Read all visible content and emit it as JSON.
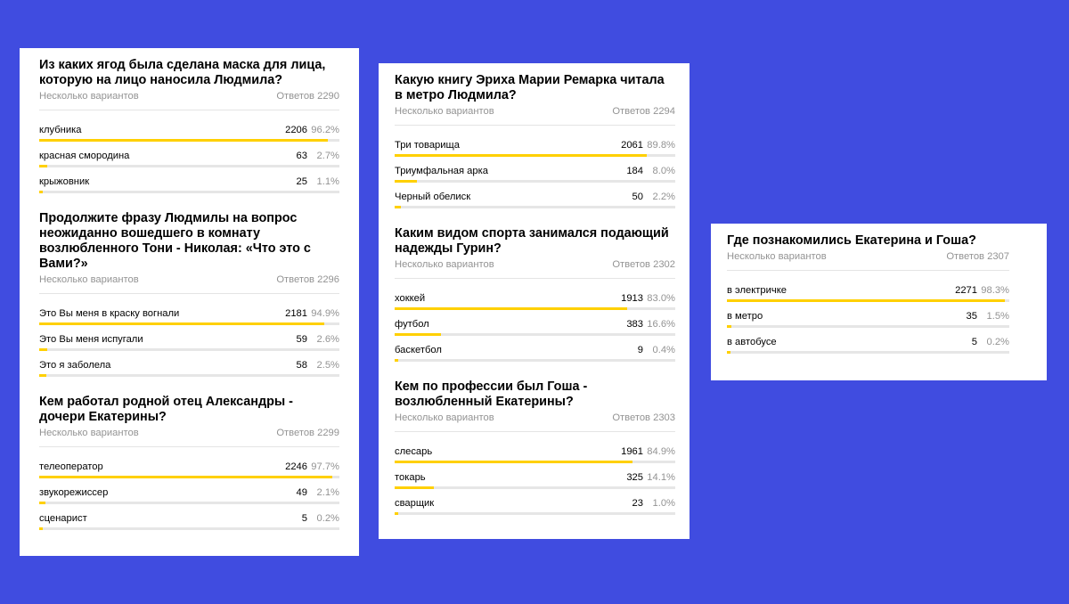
{
  "colors": {
    "background": "#404ce0",
    "bar_fill": "#ffd000",
    "bar_track": "#e6e6e6"
  },
  "cards": [
    {
      "polls": [
        {
          "title": "Из каких ягод была сделана маска для лица, которую на лицо наносила Людмила?",
          "meta_left": "Несколько вариантов",
          "meta_right": "Ответов 2290",
          "options": [
            {
              "label": "клубника",
              "count": "2206",
              "pct": "96.2%",
              "fraction": 0.962
            },
            {
              "label": "красная смородина",
              "count": "63",
              "pct": "2.7%",
              "fraction": 0.027
            },
            {
              "label": "крыжовник",
              "count": "25",
              "pct": "1.1%",
              "fraction": 0.011
            }
          ]
        },
        {
          "title": "Продолжите фразу Людмилы на вопрос неожиданно вошедшего в комнату возлюбленного Тони - Николая: «Что это с Вами?»",
          "meta_left": "Несколько вариантов",
          "meta_right": "Ответов 2296",
          "options": [
            {
              "label": "Это Вы меня в краску вогнали",
              "count": "2181",
              "pct": "94.9%",
              "fraction": 0.949
            },
            {
              "label": "Это Вы меня испугали",
              "count": "59",
              "pct": "2.6%",
              "fraction": 0.026
            },
            {
              "label": "Это я заболела",
              "count": "58",
              "pct": "2.5%",
              "fraction": 0.025
            }
          ]
        },
        {
          "title": "Кем работал родной отец Александры - дочери Екатерины?",
          "meta_left": "Несколько вариантов",
          "meta_right": "Ответов 2299",
          "options": [
            {
              "label": "телеоператор",
              "count": "2246",
              "pct": "97.7%",
              "fraction": 0.977
            },
            {
              "label": "звукорежиссер",
              "count": "49",
              "pct": "2.1%",
              "fraction": 0.021
            },
            {
              "label": "сценарист",
              "count": "5",
              "pct": "0.2%",
              "fraction": 0.002
            }
          ]
        }
      ]
    },
    {
      "polls": [
        {
          "title": "Какую книгу Эриха Марии Ремарка читала в метро Людмила?",
          "meta_left": "Несколько вариантов",
          "meta_right": "Ответов 2294",
          "options": [
            {
              "label": "Три товарища",
              "count": "2061",
              "pct": "89.8%",
              "fraction": 0.898
            },
            {
              "label": "Триумфальная арка",
              "count": "184",
              "pct": "8.0%",
              "fraction": 0.08
            },
            {
              "label": "Черный обелиск",
              "count": "50",
              "pct": "2.2%",
              "fraction": 0.022
            }
          ]
        },
        {
          "title": "Каким видом спорта занимался подающий надежды Гурин?",
          "meta_left": "Несколько вариантов",
          "meta_right": "Ответов 2302",
          "options": [
            {
              "label": "хоккей",
              "count": "1913",
              "pct": "83.0%",
              "fraction": 0.83
            },
            {
              "label": "футбол",
              "count": "383",
              "pct": "16.6%",
              "fraction": 0.166
            },
            {
              "label": "баскетбол",
              "count": "9",
              "pct": "0.4%",
              "fraction": 0.004
            }
          ]
        },
        {
          "title": "Кем по профессии был Гоша - возлюбленный Екатерины?",
          "meta_left": "Несколько вариантов",
          "meta_right": "Ответов 2303",
          "options": [
            {
              "label": "слесарь",
              "count": "1961",
              "pct": "84.9%",
              "fraction": 0.849
            },
            {
              "label": "токарь",
              "count": "325",
              "pct": "14.1%",
              "fraction": 0.141
            },
            {
              "label": "сварщик",
              "count": "23",
              "pct": "1.0%",
              "fraction": 0.01
            }
          ]
        }
      ]
    },
    {
      "polls": [
        {
          "title": "Где познакомились Екатерина и Гоша?",
          "meta_left": "Несколько вариантов",
          "meta_right": "Ответов 2307",
          "options": [
            {
              "label": "в электричке",
              "count": "2271",
              "pct": "98.3%",
              "fraction": 0.983
            },
            {
              "label": "в метро",
              "count": "35",
              "pct": "1.5%",
              "fraction": 0.015
            },
            {
              "label": "в автобусе",
              "count": "5",
              "pct": "0.2%",
              "fraction": 0.002
            }
          ]
        }
      ]
    }
  ]
}
